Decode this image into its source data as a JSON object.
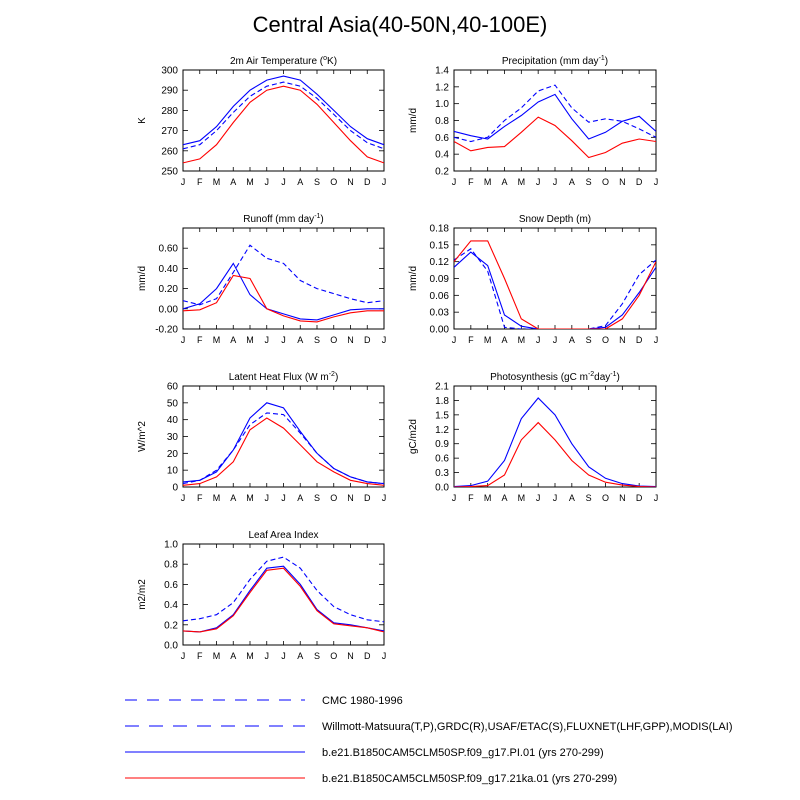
{
  "title": "Central Asia(40-50N,40-100E)",
  "months": [
    "J",
    "F",
    "M",
    "A",
    "M",
    "J",
    "J",
    "A",
    "S",
    "O",
    "N",
    "D",
    "J"
  ],
  "colors": {
    "obs": "#0000ff",
    "pi": "#0000ff",
    "ka": "#ff0000"
  },
  "legend": [
    {
      "key": "cmc",
      "label": "CMC 1980-1996",
      "style": "dashed-long",
      "color": "#0000ff"
    },
    {
      "key": "willmott",
      "label": "Willmott-Matsuura(T,P),GRDC(R),USAF/ETAC(S),FLUXNET(LHF,GPP),MODIS(LAI)",
      "style": "dashed",
      "color": "#0000ff"
    },
    {
      "key": "pi",
      "label": "b.e21.B1850CAM5CLM50SP.f09_g17.PI.01 (yrs 270-299)",
      "style": "solid",
      "color": "#0000ff"
    },
    {
      "key": "ka",
      "label": "b.e21.B1850CAM5CLM50SP.f09_g17.21ka.01 (yrs 270-299)",
      "style": "solid",
      "color": "#ff0000"
    }
  ],
  "chart_data": [
    {
      "type": "line",
      "title_main": "2m Air Temperature (",
      "title_sup": "o",
      "title_end": "K)",
      "ylabel": "K",
      "ylim": [
        250,
        300
      ],
      "yticks": [
        250,
        260,
        270,
        280,
        290,
        300
      ],
      "yticklabels": [
        "250",
        "260",
        "270",
        "280",
        "290",
        "300"
      ],
      "series": [
        {
          "name": "obs",
          "dash": true,
          "values": [
            261,
            263,
            270,
            279,
            287,
            292,
            294,
            292,
            286,
            278,
            270,
            264,
            261
          ]
        },
        {
          "name": "pi",
          "dash": false,
          "values": [
            263,
            265,
            272,
            282,
            290,
            295,
            297,
            295,
            288,
            280,
            272,
            266,
            263
          ]
        },
        {
          "name": "ka",
          "dash": false,
          "values": [
            254,
            256,
            263,
            274,
            284,
            290,
            292,
            290,
            283,
            274,
            265,
            257,
            254
          ]
        }
      ]
    },
    {
      "type": "line",
      "title_main": "Precipitation (mm day",
      "title_sup": "-1",
      "title_end": ")",
      "ylabel": "mm/d",
      "ylim": [
        0.2,
        1.4
      ],
      "yticks": [
        0.2,
        0.4,
        0.6,
        0.8,
        1.0,
        1.2,
        1.4
      ],
      "yticklabels": [
        "0.2",
        "0.4",
        "0.6",
        "0.8",
        "1.0",
        "1.2",
        "1.4"
      ],
      "series": [
        {
          "name": "obs",
          "dash": true,
          "values": [
            0.6,
            0.55,
            0.6,
            0.8,
            0.95,
            1.15,
            1.22,
            0.95,
            0.78,
            0.82,
            0.79,
            0.7,
            0.6
          ]
        },
        {
          "name": "pi",
          "dash": false,
          "values": [
            0.67,
            0.62,
            0.58,
            0.73,
            0.86,
            1.02,
            1.11,
            0.82,
            0.58,
            0.66,
            0.79,
            0.85,
            0.67
          ]
        },
        {
          "name": "ka",
          "dash": false,
          "values": [
            0.55,
            0.44,
            0.48,
            0.49,
            0.66,
            0.84,
            0.74,
            0.56,
            0.36,
            0.42,
            0.53,
            0.58,
            0.55
          ]
        }
      ]
    },
    {
      "type": "line",
      "title_main": "Runoff (mm day",
      "title_sup": "-1",
      "title_end": ")",
      "ylabel": "mm/d",
      "ylim": [
        -0.2,
        0.8
      ],
      "yticks": [
        -0.2,
        0.0,
        0.2,
        0.4,
        0.6
      ],
      "yticklabels": [
        "-0.20",
        "0.00",
        "0.20",
        "0.40",
        "0.60"
      ],
      "series": [
        {
          "name": "obs",
          "dash": true,
          "values": [
            0.08,
            0.04,
            0.1,
            0.36,
            0.63,
            0.5,
            0.45,
            0.28,
            0.2,
            0.15,
            0.1,
            0.06,
            0.08
          ]
        },
        {
          "name": "pi",
          "dash": false,
          "values": [
            0.0,
            0.05,
            0.2,
            0.45,
            0.14,
            0.0,
            -0.05,
            -0.1,
            -0.11,
            -0.06,
            -0.01,
            0.0,
            0.0
          ]
        },
        {
          "name": "ka",
          "dash": false,
          "values": [
            -0.02,
            -0.01,
            0.06,
            0.33,
            0.3,
            0.0,
            -0.07,
            -0.12,
            -0.13,
            -0.08,
            -0.04,
            -0.02,
            -0.02
          ]
        }
      ]
    },
    {
      "type": "line",
      "title_main": "Snow Depth (m)",
      "title_sup": "",
      "title_end": "",
      "ylabel": "mm/d",
      "ylim": [
        0.0,
        0.18
      ],
      "yticks": [
        0.0,
        0.03,
        0.06,
        0.09,
        0.12,
        0.15,
        0.18
      ],
      "yticklabels": [
        "0.00",
        "0.03",
        "0.06",
        "0.09",
        "0.12",
        "0.15",
        "0.18"
      ],
      "series": [
        {
          "name": "obs",
          "dash": true,
          "values": [
            0.123,
            0.143,
            0.103,
            0.003,
            0.0,
            0.0,
            0.0,
            0.0,
            0.0,
            0.006,
            0.045,
            0.097,
            0.123
          ]
        },
        {
          "name": "pi",
          "dash": false,
          "values": [
            0.11,
            0.137,
            0.113,
            0.025,
            0.005,
            0.0,
            0.0,
            0.0,
            0.0,
            0.003,
            0.025,
            0.065,
            0.11
          ]
        },
        {
          "name": "ka",
          "dash": false,
          "values": [
            0.12,
            0.157,
            0.157,
            0.09,
            0.018,
            0.0,
            0.0,
            0.0,
            0.0,
            0.0,
            0.018,
            0.06,
            0.12
          ]
        }
      ]
    },
    {
      "type": "line",
      "title_main": "Latent Heat Flux (W m",
      "title_sup": "-2",
      "title_end": ")",
      "ylabel": "W/m^2",
      "ylim": [
        0,
        60
      ],
      "yticks": [
        0,
        10,
        20,
        30,
        40,
        50,
        60
      ],
      "yticklabels": [
        "0",
        "10",
        "20",
        "30",
        "40",
        "50",
        "60"
      ],
      "series": [
        {
          "name": "obs",
          "dash": true,
          "values": [
            2,
            4,
            10,
            22,
            37,
            44,
            43,
            32,
            20,
            11,
            6,
            3,
            2
          ]
        },
        {
          "name": "pi",
          "dash": false,
          "values": [
            3,
            4,
            9,
            22,
            41,
            50,
            47,
            33,
            20,
            11,
            6,
            3,
            2
          ]
        },
        {
          "name": "ka",
          "dash": false,
          "values": [
            1,
            2,
            6,
            15,
            34,
            41,
            35,
            25,
            15,
            9,
            4,
            2,
            1
          ]
        }
      ]
    },
    {
      "type": "line",
      "title_main": "Photosynthesis (gC m",
      "title_sup": "-2",
      "title_end": "day",
      "title_sup2": "-1",
      "title_end2": ")",
      "ylabel": "gC/m2d",
      "ylim": [
        0.0,
        2.1
      ],
      "yticks": [
        0.0,
        0.3,
        0.6,
        0.9,
        1.2,
        1.5,
        1.8,
        2.1
      ],
      "yticklabels": [
        "0.0",
        "0.3",
        "0.6",
        "0.9",
        "1.2",
        "1.5",
        "1.8",
        "2.1"
      ],
      "series": [
        {
          "name": "pi",
          "dash": false,
          "values": [
            0.01,
            0.03,
            0.12,
            0.55,
            1.42,
            1.85,
            1.5,
            0.9,
            0.42,
            0.18,
            0.07,
            0.02,
            0.01
          ]
        },
        {
          "name": "ka",
          "dash": false,
          "values": [
            0.0,
            0.01,
            0.03,
            0.25,
            0.98,
            1.34,
            0.98,
            0.55,
            0.25,
            0.1,
            0.04,
            0.01,
            0.0
          ]
        }
      ]
    },
    {
      "type": "line",
      "title_main": "Leaf Area Index",
      "title_sup": "",
      "title_end": "",
      "ylabel": "m2/m2",
      "ylim": [
        0.0,
        1.0
      ],
      "yticks": [
        0.0,
        0.2,
        0.4,
        0.6,
        0.8,
        1.0
      ],
      "yticklabels": [
        "0.0",
        "0.2",
        "0.4",
        "0.6",
        "0.8",
        "1.0"
      ],
      "series": [
        {
          "name": "obs",
          "dash": true,
          "values": [
            0.24,
            0.26,
            0.3,
            0.42,
            0.65,
            0.83,
            0.87,
            0.76,
            0.54,
            0.38,
            0.3,
            0.25,
            0.23
          ]
        },
        {
          "name": "pi",
          "dash": false,
          "values": [
            0.14,
            0.13,
            0.17,
            0.3,
            0.54,
            0.76,
            0.78,
            0.6,
            0.35,
            0.22,
            0.2,
            0.17,
            0.14
          ]
        },
        {
          "name": "ka",
          "dash": false,
          "values": [
            0.14,
            0.13,
            0.16,
            0.29,
            0.52,
            0.74,
            0.76,
            0.58,
            0.34,
            0.21,
            0.19,
            0.17,
            0.13
          ]
        }
      ]
    }
  ]
}
